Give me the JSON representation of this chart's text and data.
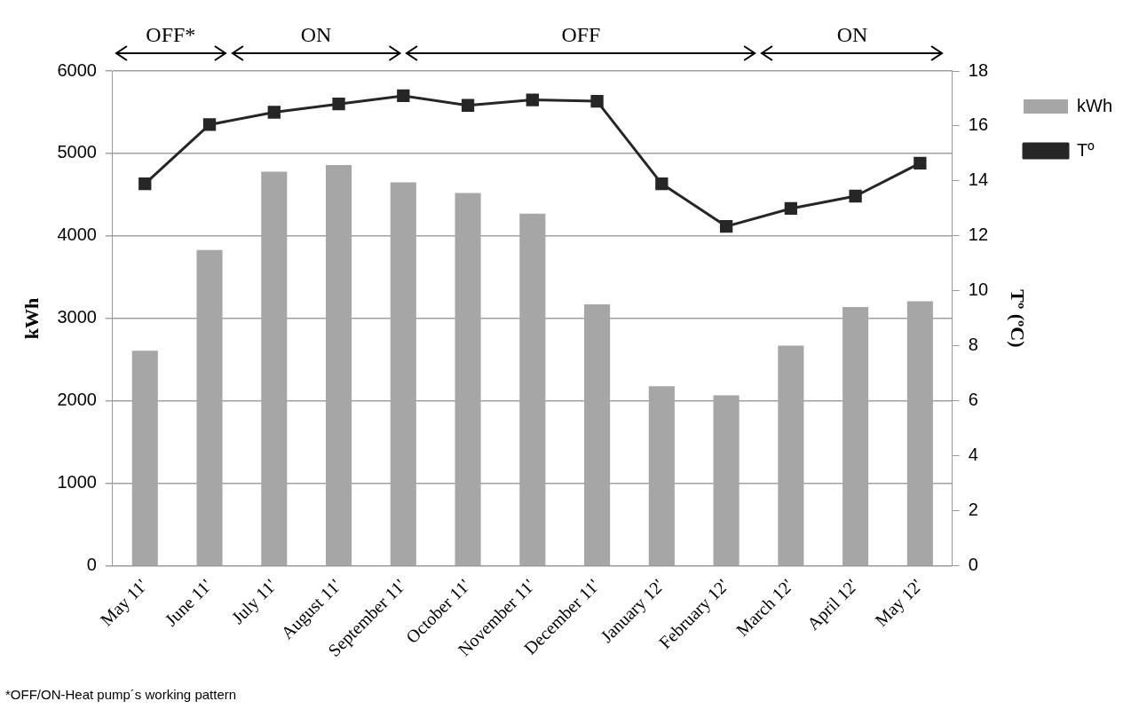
{
  "chart_data": {
    "type": "bar",
    "categories": [
      "May 11'",
      "June 11'",
      "July 11'",
      "August 11'",
      "September 11'",
      "October 11'",
      "November 11'",
      "December 11'",
      "January 12'",
      "February 12'",
      "March 12'",
      "April 12'",
      "May 12'"
    ],
    "series": [
      {
        "name": "kWh",
        "color": "#a6a6a6",
        "values": [
          2610,
          3830,
          4780,
          4860,
          4650,
          4520,
          4270,
          3170,
          2180,
          2070,
          2670,
          3140,
          3210
        ]
      },
      {
        "name": "Tº",
        "type": "line",
        "axis": "y2",
        "color": "#262626",
        "marker": "square",
        "values": [
          13.9,
          16.05,
          16.5,
          16.8,
          17.1,
          16.75,
          16.95,
          16.9,
          13.9,
          12.35,
          13.0,
          13.45,
          14.65
        ]
      }
    ],
    "ylabel": "kWh",
    "y2label": "Tº (ºC)",
    "ylim": [
      0,
      6000
    ],
    "yticks": [
      0,
      1000,
      2000,
      3000,
      4000,
      5000,
      6000
    ],
    "y2lim": [
      0,
      18
    ],
    "y2ticks": [
      0,
      2,
      4,
      6,
      8,
      10,
      12,
      14,
      16,
      18
    ],
    "grid": "y",
    "legend": "top right",
    "annotations": [
      "OFF*",
      "ON",
      "OFF",
      "ON",
      "*OFF/ON-Heat pump´s working pattern"
    ]
  }
}
